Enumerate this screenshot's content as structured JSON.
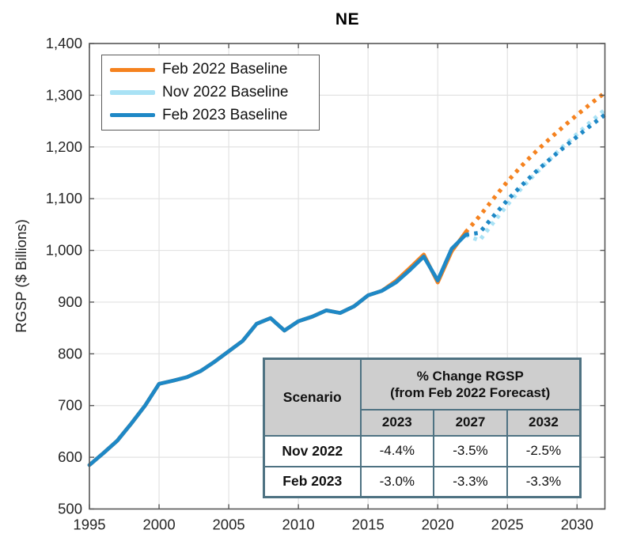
{
  "title": "NE",
  "ylabel": "RGSP ($ Billions)",
  "legend": {
    "items": [
      {
        "label": "Feb 2022 Baseline",
        "color": "#F5821F"
      },
      {
        "label": "Nov 2022 Baseline",
        "color": "#A9E2F5"
      },
      {
        "label": "Feb 2023 Baseline",
        "color": "#1E88C6"
      }
    ]
  },
  "table": {
    "scenario_header": "Scenario",
    "change_header_line1": "% Change RGSP",
    "change_header_line2": "(from Feb 2022 Forecast)",
    "year_columns": [
      "2023",
      "2027",
      "2032"
    ],
    "rows": [
      {
        "label": "Nov 2022",
        "values": [
          "-4.4%",
          "-3.5%",
          "-2.5%"
        ]
      },
      {
        "label": "Feb 2023",
        "values": [
          "-3.0%",
          "-3.3%",
          "-3.3%"
        ]
      }
    ]
  },
  "chart_data": {
    "type": "line",
    "title": "NE",
    "xlabel": "",
    "ylabel": "RGSP ($ Billions)",
    "xlim": [
      1995,
      2032
    ],
    "ylim": [
      500,
      1400
    ],
    "grid": true,
    "legend_position": "top-left",
    "axis_color": "#595959",
    "grid_color": "#e2e2e2",
    "tick_label_color": "#262626",
    "x_ticks": {
      "values": [
        1995,
        2000,
        2005,
        2010,
        2015,
        2020,
        2025,
        2030
      ],
      "labels": [
        "1995",
        "2000",
        "2005",
        "2010",
        "2015",
        "2020",
        "2025",
        "2030"
      ]
    },
    "y_ticks": {
      "values": [
        500,
        600,
        700,
        800,
        900,
        1000,
        1100,
        1200,
        1300,
        1400
      ],
      "labels": [
        "500",
        "600",
        "700",
        "800",
        "900",
        "1,000",
        "1,100",
        "1,200",
        "1,300",
        "1,400"
      ]
    },
    "series": [
      {
        "name": "Feb 2022 Baseline",
        "color": "#F5821F",
        "segments": [
          {
            "style": "solid",
            "x": [
              1995,
              1996,
              1997,
              1998,
              1999,
              2000,
              2001,
              2002,
              2003,
              2004,
              2005,
              2006,
              2007,
              2008,
              2009,
              2010,
              2011,
              2012,
              2013,
              2014,
              2015,
              2016,
              2017,
              2018,
              2019,
              2020,
              2021,
              2022
            ],
            "y": [
              585,
              608,
              632,
              665,
              700,
              742,
              748,
              755,
              767,
              785,
              805,
              825,
              858,
              869,
              845,
              863,
              872,
              884,
              879,
              892,
              913,
              922,
              941,
              966,
              992,
              938,
              998,
              1035
            ]
          },
          {
            "style": "dotted",
            "x": [
              2022,
              2023,
              2024,
              2025,
              2026,
              2027,
              2028,
              2029,
              2030,
              2031,
              2032
            ],
            "y": [
              1035,
              1066,
              1100,
              1133,
              1163,
              1190,
              1215,
              1239,
              1262,
              1284,
              1305
            ]
          }
        ]
      },
      {
        "name": "Nov 2022 Baseline",
        "color": "#A9E2F5",
        "segments": [
          {
            "style": "dotted",
            "x": [
              2022,
              2023,
              2024,
              2025,
              2026,
              2027,
              2028,
              2029,
              2030,
              2031,
              2032
            ],
            "y": [
              1030,
              1019,
              1054,
              1088,
              1120,
              1148,
              1175,
              1201,
              1225,
              1249,
              1272
            ]
          }
        ]
      },
      {
        "name": "Feb 2023 Baseline",
        "color": "#1E88C6",
        "segments": [
          {
            "style": "solid",
            "x": [
              1995,
              1996,
              1997,
              1998,
              1999,
              2000,
              2001,
              2002,
              2003,
              2004,
              2005,
              2006,
              2007,
              2008,
              2009,
              2010,
              2011,
              2012,
              2013,
              2014,
              2015,
              2016,
              2017,
              2018,
              2019,
              2020,
              2021,
              2022
            ],
            "y": [
              585,
              608,
              632,
              665,
              700,
              742,
              748,
              755,
              767,
              785,
              805,
              825,
              858,
              869,
              845,
              863,
              872,
              884,
              879,
              892,
              913,
              922,
              938,
              962,
              988,
              942,
              1003,
              1030
            ]
          },
          {
            "style": "dotted",
            "x": [
              2022,
              2023,
              2024,
              2025,
              2026,
              2027,
              2028,
              2029,
              2030,
              2031,
              2032
            ],
            "y": [
              1030,
              1034,
              1066,
              1097,
              1125,
              1151,
              1175,
              1198,
              1220,
              1242,
              1262
            ]
          }
        ]
      }
    ]
  }
}
